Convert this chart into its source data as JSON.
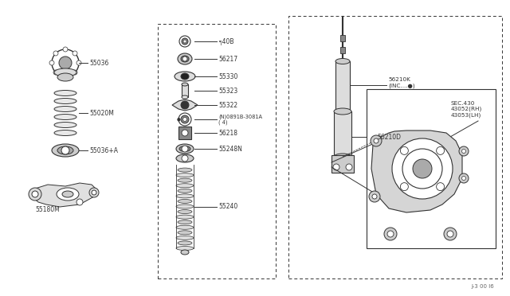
{
  "bg_color": "#ffffff",
  "line_color": "#333333",
  "figsize": [
    6.4,
    3.72
  ],
  "dpi": 100,
  "footer_text": "J-3 00 I6",
  "left": {
    "label_55036": "55036",
    "label_55020M": "55020M",
    "label_55036A": "55036+A",
    "label_55180M": "55180M"
  },
  "middle": {
    "label_55040B": "╕40B",
    "label_56217": "56217",
    "label_55330": "55330",
    "label_55323": "55323",
    "label_55322": "55322",
    "label_0891B": "★(N)0891B-3081A\n( 4)",
    "label_56218": "56218",
    "label_55248N": "55248N",
    "label_55240": "55240"
  },
  "right": {
    "label_56210K": "56210K\n(INC....●)",
    "label_56210D": "56210D",
    "label_sec430": "SEC.430\n43052(RH)\n43053(LH)"
  }
}
